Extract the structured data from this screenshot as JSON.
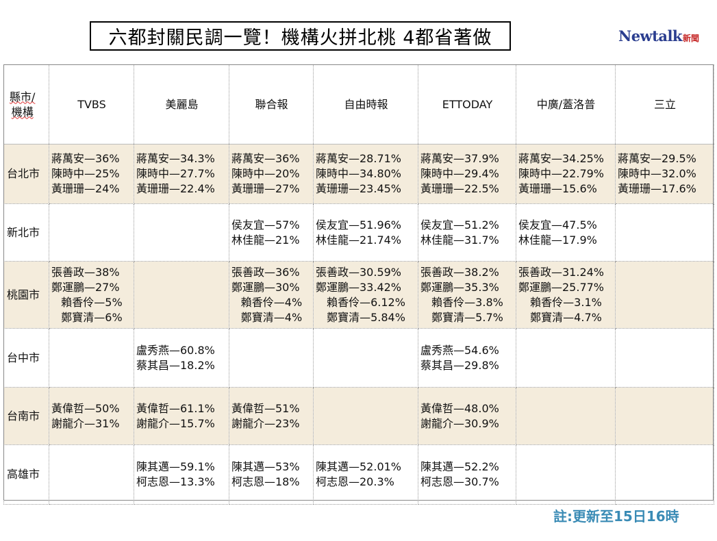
{
  "title": "六都封關民調一覽！機構火拼北桃 4都省著做",
  "logo": {
    "brand": "Newtalk",
    "brand_sub": "新聞"
  },
  "table": {
    "corner": [
      "縣市/",
      "機構"
    ],
    "columns": [
      "TVBS",
      "美麗島",
      "聯合報",
      "自由時報",
      "ETTODAY",
      "中廣/蓋洛普",
      "三立"
    ],
    "rows": [
      {
        "city": "台北市",
        "cells": [
          [
            "蔣萬安—36%",
            "陳時中—25%",
            "黃珊珊—24%"
          ],
          [
            "蔣萬安—34.3%",
            "陳時中—27.7%",
            "黃珊珊—22.4%"
          ],
          [
            "蔣萬安—36%",
            "陳時中—20%",
            "黃珊珊—27%"
          ],
          [
            "蔣萬安—28.71%",
            "陳時中—34.80%",
            "黃珊珊—23.45%"
          ],
          [
            "蔣萬安—37.9%",
            "陳時中—29.4%",
            "黃珊珊—22.5%"
          ],
          [
            "蔣萬安—34.25%",
            "陳時中—22.79%",
            "黃珊珊—15.6%"
          ],
          [
            "蔣萬安—29.5%",
            "陳時中—32.0%",
            "黃珊珊—17.6%"
          ]
        ]
      },
      {
        "city": "新北市",
        "cells": [
          [],
          [],
          [
            "侯友宜—57%",
            "林佳龍—21%"
          ],
          [
            "侯友宜—51.96%",
            "林佳龍—21.74%"
          ],
          [
            "侯友宜—51.2%",
            "林佳龍—31.7%"
          ],
          [
            "侯友宜—47.5%",
            "林佳龍—17.9%"
          ],
          []
        ]
      },
      {
        "city": "桃園市",
        "cells": [
          [
            "張善政—38%",
            "鄭運鵬—27%",
            "賴香伶—5%",
            "鄭寶清—6%"
          ],
          [],
          [
            "張善政—36%",
            "鄭運鵬—30%",
            "賴香伶—4%",
            "鄭寶清—4%"
          ],
          [
            "張善政—30.59%",
            "鄭運鵬—33.42%",
            "賴香伶—6.12%",
            "鄭寶清—5.84%"
          ],
          [
            "張善政—38.2%",
            "鄭運鵬—35.3%",
            "賴香伶—3.8%",
            "鄭寶清—5.7%"
          ],
          [
            "張善政—31.24%",
            "鄭運鵬—25.77%",
            "賴香伶—3.1%",
            "鄭寶清—4.7%"
          ],
          []
        ]
      },
      {
        "city": "台中市",
        "cells": [
          [],
          [
            "盧秀燕—60.8%",
            "蔡其昌—18.2%"
          ],
          [],
          [],
          [
            "盧秀燕—54.6%",
            "蔡其昌—29.8%"
          ],
          [],
          []
        ]
      },
      {
        "city": "台南市",
        "cells": [
          [
            "黃偉哲—50%",
            "謝龍介—31%"
          ],
          [
            "黃偉哲—61.1%",
            "謝龍介—15.7%"
          ],
          [
            "黃偉哲—51%",
            "謝龍介—23%"
          ],
          [],
          [
            "黃偉哲—48.0%",
            "謝龍介—30.9%"
          ],
          [],
          []
        ]
      },
      {
        "city": "高雄市",
        "cells": [
          [],
          [
            "陳其邁—59.1%",
            "柯志恩—13.3%"
          ],
          [
            "陳其邁—53%",
            "柯志恩—18%"
          ],
          [
            "陳其邁—52.01%",
            "柯志恩—20.3%"
          ],
          [
            "陳其邁—52.2%",
            "柯志恩—30.7%"
          ],
          [],
          []
        ]
      }
    ]
  },
  "note": "註:更新至15日16時"
}
